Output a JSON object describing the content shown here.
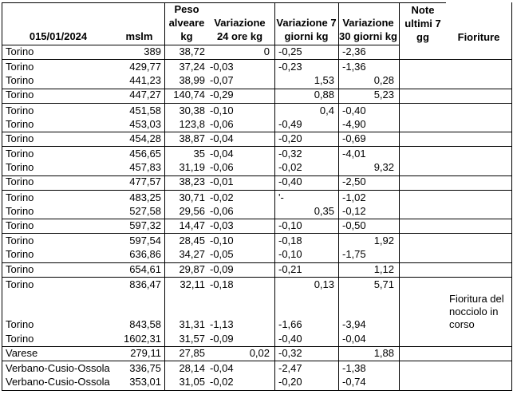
{
  "table": {
    "header": {
      "col_location_date": "015/01/2024",
      "col_mslm": "mslm",
      "col_peso": "Peso\nalveare\nkg",
      "col_var24": "Variazione\n24 ore kg",
      "col_var7": "Variazione 7\ngiorni kg",
      "col_var30": "Variazione\n30 giorni kg",
      "col_note": "Note\nultimi 7\ngg",
      "col_fioriture": "Fioriture"
    },
    "rows": [
      {
        "location": "Torino",
        "mslm": "389",
        "peso": "38,72",
        "var24": "0",
        "var7": "-0,25",
        "var30": "-2,36",
        "note": "",
        "fioriture": "",
        "group_end": true,
        "tall": false
      },
      {
        "location": "Torino",
        "mslm": "429,77",
        "peso": "37,24",
        "var24": "-0,03",
        "var7": "-0,23",
        "var30": "-1,36",
        "note": "",
        "fioriture": "",
        "group_end": false,
        "tall": false
      },
      {
        "location": "Torino",
        "mslm": "441,23",
        "peso": "38,99",
        "var24": "-0,07",
        "var7": "1,53",
        "var30": "0,28",
        "note": "",
        "fioriture": "",
        "group_end": true,
        "tall": false
      },
      {
        "location": "Torino",
        "mslm": "447,27",
        "peso": "140,74",
        "var24": "-0,29",
        "var7": "0,88",
        "var30": "5,23",
        "note": "",
        "fioriture": "",
        "group_end": true,
        "tall": false
      },
      {
        "location": "Torino",
        "mslm": "451,58",
        "peso": "30,38",
        "var24": "-0,10",
        "var7": "0,4",
        "var30": "-0,40",
        "note": "",
        "fioriture": "",
        "group_end": false,
        "tall": false
      },
      {
        "location": "Torino",
        "mslm": "453,03",
        "peso": "123,8",
        "var24": "-0,06",
        "var7": "-0,49",
        "var30": "-4,90",
        "note": "",
        "fioriture": "",
        "group_end": true,
        "tall": false
      },
      {
        "location": "Torino",
        "mslm": "454,28",
        "peso": "38,87",
        "var24": "-0,04",
        "var7": "-0,20",
        "var30": "-0,69",
        "note": "",
        "fioriture": "",
        "group_end": true,
        "tall": false
      },
      {
        "location": "Torino",
        "mslm": "456,65",
        "peso": "35",
        "var24": "-0,04",
        "var7": "-0,32",
        "var30": "-4,01",
        "note": "",
        "fioriture": "",
        "group_end": false,
        "tall": false
      },
      {
        "location": "Torino",
        "mslm": "457,83",
        "peso": "31,19",
        "var24": "-0,06",
        "var7": "-0,02",
        "var30": "9,32",
        "note": "",
        "fioriture": "",
        "group_end": true,
        "tall": false
      },
      {
        "location": "Torino",
        "mslm": "477,57",
        "peso": "38,23",
        "var24": "-0,01",
        "var7": "-0,40",
        "var30": "-2,50",
        "note": "",
        "fioriture": "",
        "group_end": true,
        "tall": false
      },
      {
        "location": "Torino",
        "mslm": "483,25",
        "peso": "30,71",
        "var24": "-0,02",
        "var7": "'-",
        "var30": "-1,02",
        "note": "",
        "fioriture": "",
        "group_end": false,
        "tall": false
      },
      {
        "location": "Torino",
        "mslm": "527,58",
        "peso": "29,56",
        "var24": "-0,06",
        "var7": "0,35",
        "var30": "-0,12",
        "note": "",
        "fioriture": "",
        "group_end": true,
        "tall": false
      },
      {
        "location": "Torino",
        "mslm": "597,32",
        "peso": "14,47",
        "var24": "-0,03",
        "var7": "-0,10",
        "var30": "-0,50",
        "note": "",
        "fioriture": "",
        "group_end": true,
        "tall": false
      },
      {
        "location": "Torino",
        "mslm": "597,54",
        "peso": "28,45",
        "var24": "-0,10",
        "var7": "-0,18",
        "var30": "1,92",
        "note": "",
        "fioriture": "",
        "group_end": false,
        "tall": false
      },
      {
        "location": "Torino",
        "mslm": "636,86",
        "peso": "34,27",
        "var24": "-0,05",
        "var7": "-0,10",
        "var30": "-1,75",
        "note": "",
        "fioriture": "",
        "group_end": true,
        "tall": false
      },
      {
        "location": "Torino",
        "mslm": "654,61",
        "peso": "29,87",
        "var24": "-0,09",
        "var7": "-0,21",
        "var30": "1,12",
        "note": "",
        "fioriture": "",
        "group_end": true,
        "tall": false
      },
      {
        "location": "Torino",
        "mslm": "836,47",
        "peso": "32,11",
        "var24": "-0,18",
        "var7": "0,13",
        "var30": "5,71",
        "note": "",
        "fioriture": "",
        "group_end": false,
        "tall": false
      },
      {
        "location": "Torino",
        "mslm": "843,58",
        "peso": "31,31",
        "var24": "-1,13",
        "var7": "-1,66",
        "var30": "-3,94",
        "note": "",
        "fioriture": "Fioritura del nocciolo in corso",
        "group_end": false,
        "tall": true
      },
      {
        "location": "Torino",
        "mslm": "1602,31",
        "peso": "31,57",
        "var24": "-0,09",
        "var7": "-0,40",
        "var30": "-0,04",
        "note": "",
        "fioriture": "",
        "group_end": true,
        "tall": false
      },
      {
        "location": "Varese",
        "mslm": "279,11",
        "peso": "27,85",
        "var24": "0,02",
        "var7": "-0,32",
        "var30": "1,88",
        "note": "",
        "fioriture": "",
        "group_end": true,
        "tall": false
      },
      {
        "location": "Verbano-Cusio-Ossola",
        "mslm": "336,75",
        "peso": "28,14",
        "var24": "-0,04",
        "var7": "-2,47",
        "var30": "-1,38",
        "note": "",
        "fioriture": "",
        "group_end": false,
        "tall": false
      },
      {
        "location": "Verbano-Cusio-Ossola",
        "mslm": "353,01",
        "peso": "31,05",
        "var24": "-0,02",
        "var7": "-0,20",
        "var30": "-0,74",
        "note": "",
        "fioriture": "",
        "group_end": true,
        "tall": false
      }
    ]
  }
}
